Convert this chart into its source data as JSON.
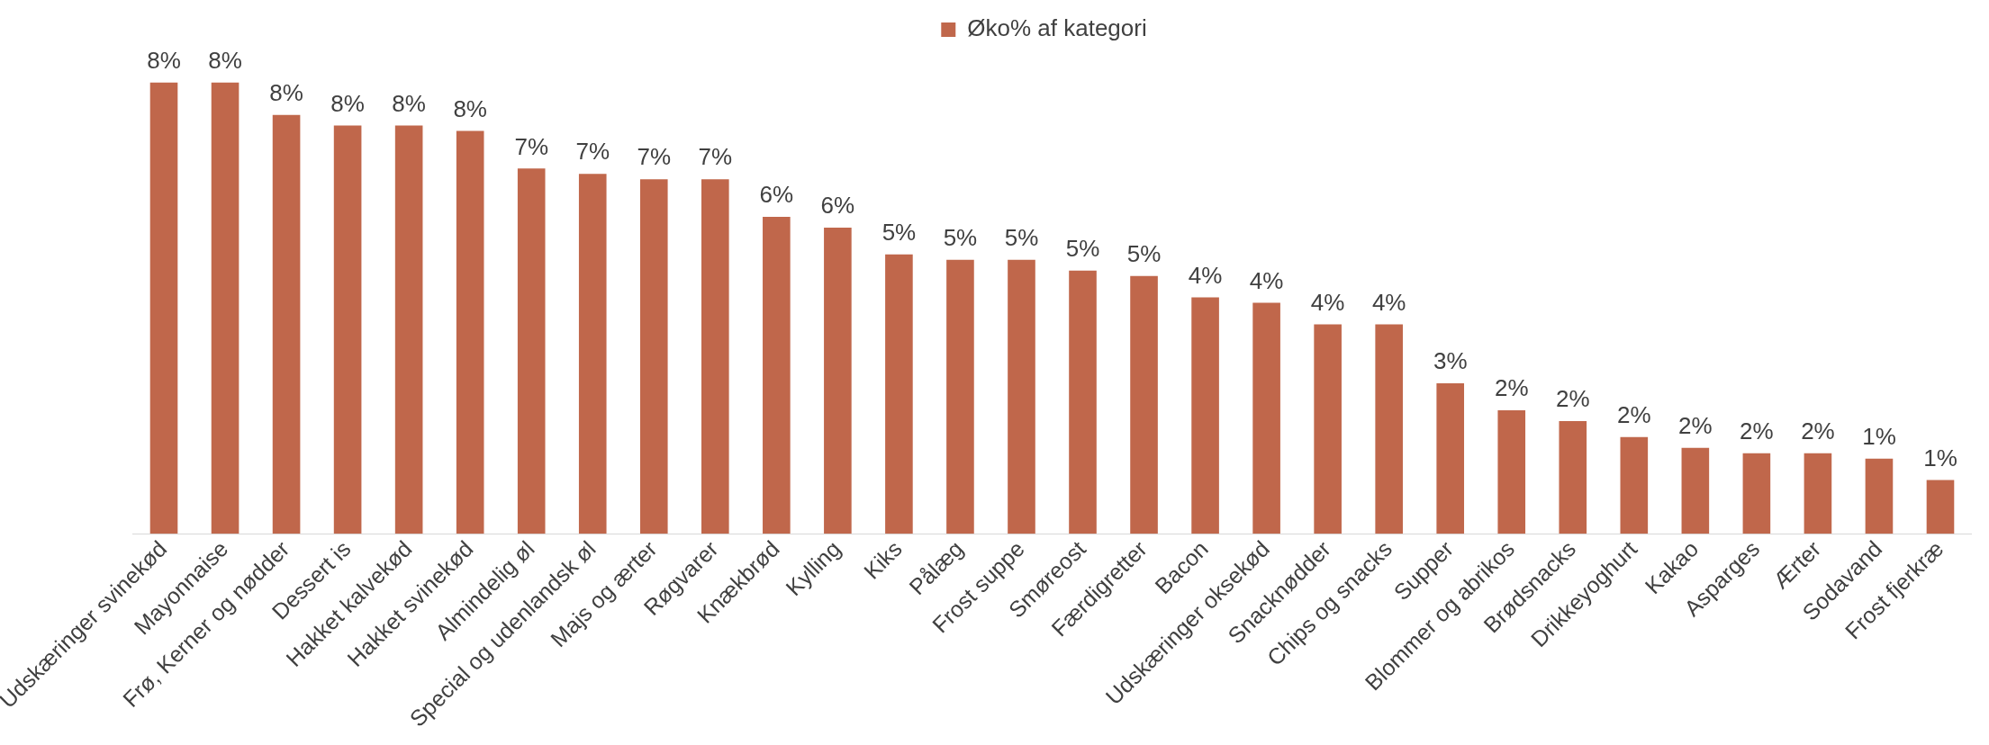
{
  "chart_data": {
    "type": "bar",
    "legend": "top",
    "categories": [
      "Udskæringer svinekød",
      "Mayonnaise",
      "Frø, Kerner og nødder",
      "Dessert is",
      "Hakket kalvekød",
      "Hakket svinekød",
      "Almindelig øl",
      "Special og udenlandsk øl",
      "Majs og ærter",
      "Røgvarer",
      "Knækbrød",
      "Kylling",
      "Kiks",
      "Pålæg",
      "Frost suppe",
      "Smøreost",
      "Færdigretter",
      "Bacon",
      "Udskæringer oksekød",
      "Snacknødder",
      "Chips og snacks",
      "Supper",
      "Blommer og abrikos",
      "Brødsnacks",
      "Drikkeyoghurt",
      "Kakao",
      "Asparges",
      "Ærter",
      "Sodavand",
      "Frost fjerkræ"
    ],
    "series": [
      {
        "name": "Øko% af kategori",
        "color": "#c0674b",
        "values": [
          8.4,
          8.4,
          7.8,
          7.6,
          7.6,
          7.5,
          6.8,
          6.7,
          6.6,
          6.6,
          5.9,
          5.7,
          5.2,
          5.1,
          5.1,
          4.9,
          4.8,
          4.4,
          4.3,
          3.9,
          3.9,
          2.8,
          2.3,
          2.1,
          1.8,
          1.6,
          1.5,
          1.5,
          1.4,
          1.0
        ],
        "value_labels": [
          "8%",
          "8%",
          "8%",
          "8%",
          "8%",
          "8%",
          "7%",
          "7%",
          "7%",
          "7%",
          "6%",
          "6%",
          "5%",
          "5%",
          "5%",
          "5%",
          "5%",
          "4%",
          "4%",
          "4%",
          "4%",
          "3%",
          "2%",
          "2%",
          "2%",
          "2%",
          "2%",
          "2%",
          "1%",
          "1%"
        ]
      }
    ]
  }
}
